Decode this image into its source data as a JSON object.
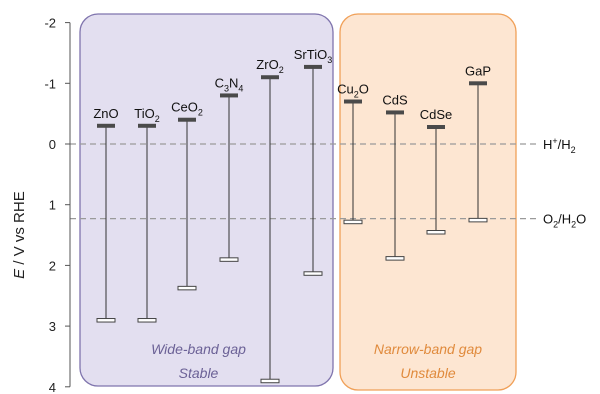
{
  "chart_data": {
    "type": "band-edge",
    "ylabel_parts": [
      "E",
      " / V vs RHE"
    ],
    "ylim": [
      -2,
      4
    ],
    "y_ticks": [
      "-2",
      "-1",
      "0",
      "1",
      "2",
      "3",
      "4"
    ],
    "y_tick_values": [
      -2,
      -1,
      0,
      1,
      2,
      3,
      4
    ],
    "reference_lines": [
      {
        "value": 0,
        "label": [
          "H",
          {
            "sup": "+"
          },
          "/H",
          {
            "sub": "2"
          }
        ]
      },
      {
        "value": 1.23,
        "label": [
          "O",
          {
            "sub": "2"
          },
          "/H",
          {
            "sub": "2"
          },
          "O"
        ]
      }
    ],
    "groups": [
      {
        "label_lines": [
          "Wide-band gap",
          "Stable"
        ],
        "fill": "#e3dff0",
        "stroke": "#7f74ad",
        "text_color": "#6b6196"
      },
      {
        "label_lines": [
          "Narrow-band gap",
          "Unstable"
        ],
        "fill": "#fde6d2",
        "stroke": "#f0a058",
        "text_color": "#e08a3c"
      }
    ],
    "materials": [
      {
        "label": [
          "ZnO"
        ],
        "cb": -0.3,
        "vb": 2.9,
        "group": 0
      },
      {
        "label": [
          "TiO",
          {
            "sub": "2"
          }
        ],
        "cb": -0.3,
        "vb": 2.9,
        "group": 0
      },
      {
        "label": [
          "CeO",
          {
            "sub": "2"
          }
        ],
        "cb": -0.4,
        "vb": 2.37,
        "group": 0
      },
      {
        "label": [
          "C",
          {
            "sub": "3"
          },
          "N",
          {
            "sub": "4"
          }
        ],
        "cb": -0.8,
        "vb": 1.9,
        "group": 0
      },
      {
        "label": [
          "ZrO",
          {
            "sub": "2"
          }
        ],
        "cb": -1.1,
        "vb": 3.9,
        "group": 0
      },
      {
        "label": [
          "SrTiO",
          {
            "sub": "3"
          }
        ],
        "cb": -1.27,
        "vb": 2.13,
        "group": 0
      },
      {
        "label": [
          "Cu",
          {
            "sub": "2"
          },
          "O"
        ],
        "cb": -0.7,
        "vb": 1.28,
        "group": 1
      },
      {
        "label": [
          "CdS"
        ],
        "cb": -0.52,
        "vb": 1.88,
        "group": 1
      },
      {
        "label": [
          "CdSe"
        ],
        "cb": -0.28,
        "vb": 1.45,
        "group": 1
      },
      {
        "label": [
          "GaP"
        ],
        "cb": -1.0,
        "vb": 1.25,
        "group": 1
      }
    ]
  }
}
